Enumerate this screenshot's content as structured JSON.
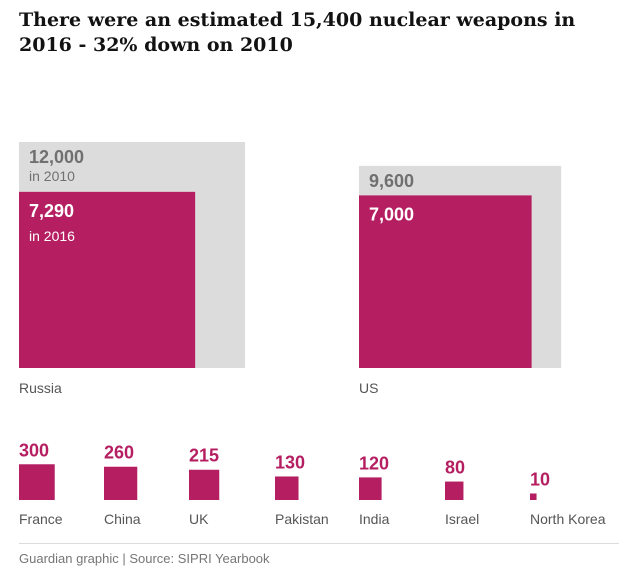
{
  "title": "There were an estimated 15,400 nuclear weapons in 2016 - 32% down on 2010",
  "source": "Guardian graphic | Source: SIPRI Yearbook",
  "colors": {
    "y2016": "#b51f62",
    "y2010": "#dcdcdc"
  },
  "chart_data": [
    {
      "type": "bar",
      "categories": [
        "Russia",
        "US"
      ],
      "series": [
        {
          "name": "in 2010",
          "values": [
            12000,
            9600
          ],
          "labels": [
            "12,000",
            "9,600"
          ]
        },
        {
          "name": "in 2016",
          "values": [
            7290,
            7000
          ],
          "labels": [
            "7,290",
            "7,000"
          ]
        }
      ]
    },
    {
      "type": "bar",
      "categories": [
        "France",
        "China",
        "UK",
        "Pakistan",
        "India",
        "Israel",
        "North Korea"
      ],
      "values": [
        300,
        260,
        215,
        130,
        120,
        80,
        10
      ],
      "labels": [
        "300",
        "260",
        "215",
        "130",
        "120",
        "80",
        "10"
      ]
    }
  ]
}
